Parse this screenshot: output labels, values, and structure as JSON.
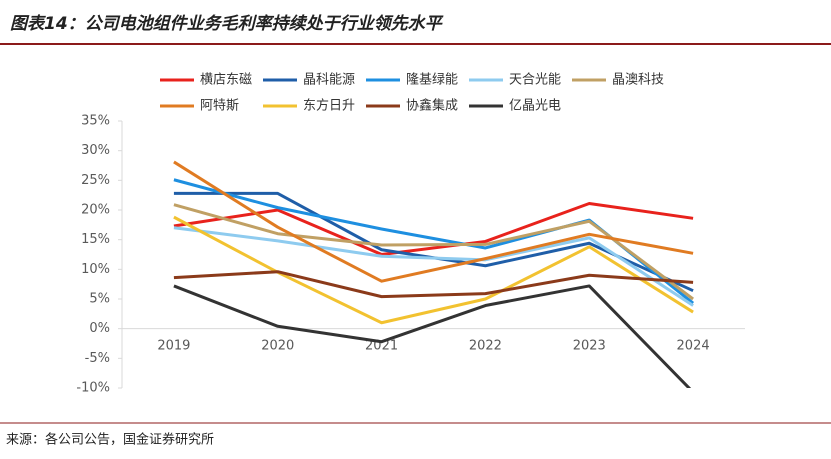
{
  "chart_data": {
    "type": "line",
    "title": "图表14：公司电池组件业务毛利率持续处于行业领先水平",
    "source": "来源：各公司公告，国金证券研究所",
    "categories": [
      "2019",
      "2020",
      "2021",
      "2022",
      "2023",
      "2024"
    ],
    "ylim": [
      -10,
      35
    ],
    "yticks": [
      {
        "value": -10,
        "label": "-10%"
      },
      {
        "value": -5,
        "label": "-5%"
      },
      {
        "value": 0,
        "label": "0%"
      },
      {
        "value": 5,
        "label": "5%"
      },
      {
        "value": 10,
        "label": "10%"
      },
      {
        "value": 15,
        "label": "15%"
      },
      {
        "value": 20,
        "label": "20%"
      },
      {
        "value": 25,
        "label": "25%"
      },
      {
        "value": 30,
        "label": "30%"
      },
      {
        "value": 35,
        "label": "35%"
      }
    ],
    "series": [
      {
        "name": "横店东磁",
        "color": "#e8221c",
        "values": [
          17.3,
          20.0,
          12.5,
          14.7,
          21.1,
          18.6
        ]
      },
      {
        "name": "晶科能源",
        "color": "#1f5ea8",
        "values": [
          22.8,
          22.8,
          13.3,
          10.6,
          14.4,
          6.4
        ]
      },
      {
        "name": "隆基绿能",
        "color": "#1e8fe0",
        "values": [
          25.1,
          20.4,
          16.8,
          13.6,
          18.3,
          4.3
        ]
      },
      {
        "name": "天合光能",
        "color": "#8ecbef",
        "values": [
          17.0,
          14.8,
          12.2,
          11.6,
          15.3,
          3.9
        ]
      },
      {
        "name": "晶澳科技",
        "color": "#c0a064",
        "values": [
          20.9,
          16.0,
          14.1,
          14.2,
          18.1,
          5.0
        ]
      },
      {
        "name": "阿特斯",
        "color": "#e07b22",
        "values": [
          28.1,
          17.1,
          8.0,
          11.8,
          15.9,
          12.7
        ]
      },
      {
        "name": "东方日升",
        "color": "#f2c230",
        "values": [
          18.8,
          9.5,
          1.0,
          5.0,
          13.8,
          2.8
        ]
      },
      {
        "name": "协鑫集成",
        "color": "#8b3a1a",
        "values": [
          8.6,
          9.6,
          5.4,
          5.9,
          9.0,
          7.8
        ]
      },
      {
        "name": "亿晶光电",
        "color": "#333333",
        "values": [
          7.2,
          0.4,
          -2.2,
          3.9,
          7.2,
          -10.7
        ]
      }
    ]
  }
}
